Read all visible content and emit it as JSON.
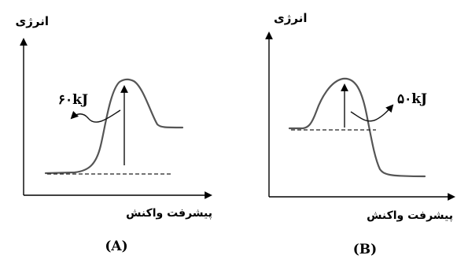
{
  "diagrams": [
    {
      "caption": "(A)",
      "y_axis_label": "انرژی",
      "x_axis_label": "پیشرفت واکنش",
      "energy_label": "۶۰kJ"
    },
    {
      "caption": "(B)",
      "y_axis_label": "انرژی",
      "x_axis_label": "پیشرفت واکنش",
      "energy_label": "۵۰kJ"
    }
  ],
  "colors": {
    "curve": "#555555",
    "axis": "#000000"
  }
}
